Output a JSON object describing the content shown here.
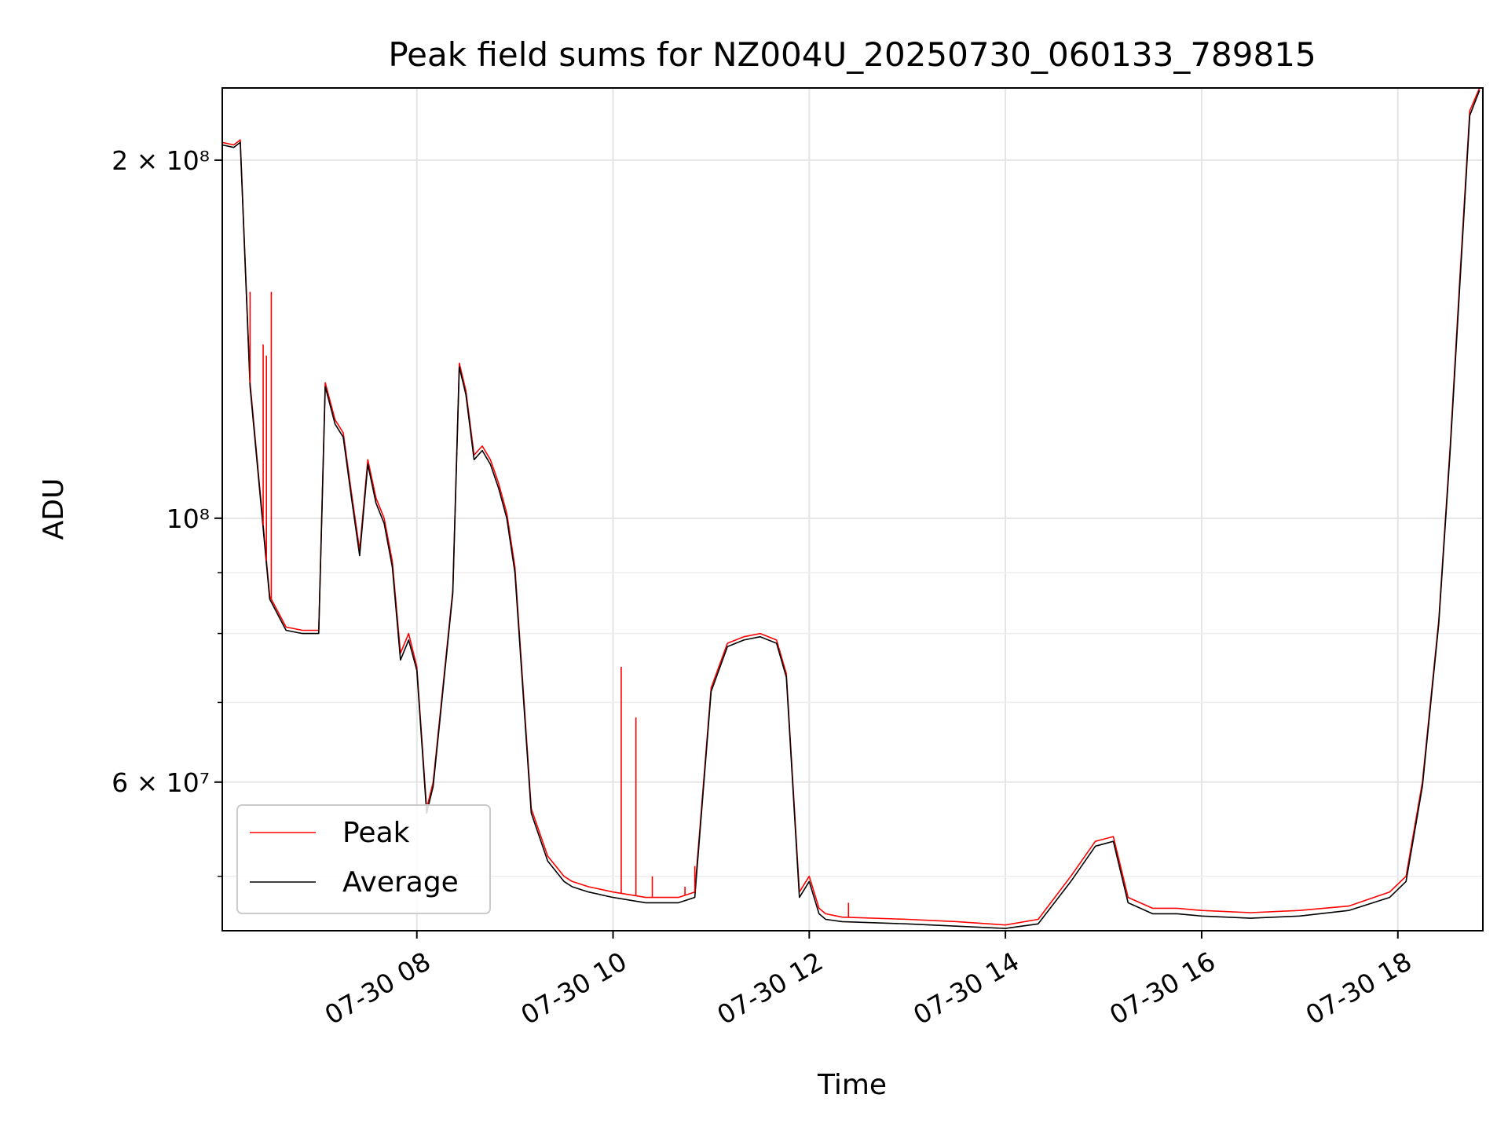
{
  "chart_data": {
    "type": "line",
    "title": "Peak field sums for NZ004U_20250730_060133_789815",
    "xlabel": "Time",
    "ylabel": "ADU",
    "y_scale": "log",
    "ylim": [
      45000000,
      230000000
    ],
    "xlim": [
      "2025-07-30 06:01",
      "2025-07-30 18:52"
    ],
    "x_ticks": [
      {
        "time": "2025-07-30 08:00",
        "label": "07-30 08"
      },
      {
        "time": "2025-07-30 10:00",
        "label": "07-30 10"
      },
      {
        "time": "2025-07-30 12:00",
        "label": "07-30 12"
      },
      {
        "time": "2025-07-30 14:00",
        "label": "07-30 14"
      },
      {
        "time": "2025-07-30 16:00",
        "label": "07-30 16"
      },
      {
        "time": "2025-07-30 18:00",
        "label": "07-30 18"
      }
    ],
    "y_ticks": [
      {
        "value": 200000000,
        "label": "2 × 10⁸"
      },
      {
        "value": 100000000,
        "label": "10⁸"
      },
      {
        "value": 60000000,
        "label": "6 × 10⁷"
      }
    ],
    "y_minor_ticks": [
      50000000,
      70000000,
      80000000,
      90000000
    ],
    "grid": true,
    "legend_position": "lower-left",
    "colors": {
      "peak": "#ff0000",
      "average": "#000000"
    },
    "series": [
      {
        "name": "Peak",
        "color": "#ff0000",
        "x": [
          "2025-07-30 06:01",
          "2025-07-30 06:08",
          "2025-07-30 06:12",
          "2025-07-30 06:18",
          "2025-07-30 06:30",
          "2025-07-30 06:40",
          "2025-07-30 06:50",
          "2025-07-30 07:00",
          "2025-07-30 07:04",
          "2025-07-30 07:10",
          "2025-07-30 07:15",
          "2025-07-30 07:20",
          "2025-07-30 07:25",
          "2025-07-30 07:30",
          "2025-07-30 07:35",
          "2025-07-30 07:40",
          "2025-07-30 07:45",
          "2025-07-30 07:50",
          "2025-07-30 07:55",
          "2025-07-30 08:00",
          "2025-07-30 08:06",
          "2025-07-30 08:10",
          "2025-07-30 08:15",
          "2025-07-30 08:22",
          "2025-07-30 08:26",
          "2025-07-30 08:30",
          "2025-07-30 08:35",
          "2025-07-30 08:40",
          "2025-07-30 08:45",
          "2025-07-30 08:50",
          "2025-07-30 08:55",
          "2025-07-30 09:00",
          "2025-07-30 09:10",
          "2025-07-30 09:20",
          "2025-07-30 09:25",
          "2025-07-30 09:30",
          "2025-07-30 09:35",
          "2025-07-30 09:45",
          "2025-07-30 10:00",
          "2025-07-30 10:20",
          "2025-07-30 10:40",
          "2025-07-30 10:50",
          "2025-07-30 11:00",
          "2025-07-30 11:10",
          "2025-07-30 11:20",
          "2025-07-30 11:30",
          "2025-07-30 11:40",
          "2025-07-30 11:46",
          "2025-07-30 11:54",
          "2025-07-30 12:00",
          "2025-07-30 12:06",
          "2025-07-30 12:10",
          "2025-07-30 12:20",
          "2025-07-30 13:00",
          "2025-07-30 13:30",
          "2025-07-30 14:00",
          "2025-07-30 14:20",
          "2025-07-30 14:40",
          "2025-07-30 14:55",
          "2025-07-30 15:06",
          "2025-07-30 15:15",
          "2025-07-30 15:30",
          "2025-07-30 15:45",
          "2025-07-30 16:00",
          "2025-07-30 16:30",
          "2025-07-30 17:00",
          "2025-07-30 17:30",
          "2025-07-30 17:55",
          "2025-07-30 18:05",
          "2025-07-30 18:15",
          "2025-07-30 18:25",
          "2025-07-30 18:32",
          "2025-07-30 18:38",
          "2025-07-30 18:44",
          "2025-07-30 18:50"
        ],
        "values": [
          207000000,
          206000000,
          208000000,
          130000000,
          86000000,
          81000000,
          80500000,
          80500000,
          130000000,
          121000000,
          118000000,
          105000000,
          94000000,
          112000000,
          104000000,
          100000000,
          92000000,
          77000000,
          80000000,
          75000000,
          57000000,
          60000000,
          70000000,
          87000000,
          135000000,
          128000000,
          113000000,
          115000000,
          112000000,
          107000000,
          101000000,
          91000000,
          57000000,
          52000000,
          51000000,
          50000000,
          49500000,
          49000000,
          48500000,
          48000000,
          48000000,
          48500000,
          72000000,
          78500000,
          79500000,
          80000000,
          79000000,
          74000000,
          48500000,
          50000000,
          47000000,
          46500000,
          46200000,
          46000000,
          45800000,
          45500000,
          46000000,
          50000000,
          53500000,
          54000000,
          48000000,
          47000000,
          47000000,
          46800000,
          46600000,
          46800000,
          47200000,
          48500000,
          50000000,
          60000000,
          82000000,
          115000000,
          160000000,
          220000000,
          230000000
        ]
      },
      {
        "name": "Average",
        "color": "#000000",
        "x": [
          "2025-07-30 06:01",
          "2025-07-30 06:08",
          "2025-07-30 06:12",
          "2025-07-30 06:18",
          "2025-07-30 06:30",
          "2025-07-30 06:40",
          "2025-07-30 06:50",
          "2025-07-30 07:00",
          "2025-07-30 07:04",
          "2025-07-30 07:10",
          "2025-07-30 07:15",
          "2025-07-30 07:20",
          "2025-07-30 07:25",
          "2025-07-30 07:30",
          "2025-07-30 07:35",
          "2025-07-30 07:40",
          "2025-07-30 07:45",
          "2025-07-30 07:50",
          "2025-07-30 07:55",
          "2025-07-30 08:00",
          "2025-07-30 08:06",
          "2025-07-30 08:10",
          "2025-07-30 08:15",
          "2025-07-30 08:22",
          "2025-07-30 08:26",
          "2025-07-30 08:30",
          "2025-07-30 08:35",
          "2025-07-30 08:40",
          "2025-07-30 08:45",
          "2025-07-30 08:50",
          "2025-07-30 08:55",
          "2025-07-30 09:00",
          "2025-07-30 09:10",
          "2025-07-30 09:20",
          "2025-07-30 09:25",
          "2025-07-30 09:30",
          "2025-07-30 09:35",
          "2025-07-30 09:45",
          "2025-07-30 10:00",
          "2025-07-30 10:20",
          "2025-07-30 10:40",
          "2025-07-30 10:50",
          "2025-07-30 11:00",
          "2025-07-30 11:10",
          "2025-07-30 11:20",
          "2025-07-30 11:30",
          "2025-07-30 11:40",
          "2025-07-30 11:46",
          "2025-07-30 11:54",
          "2025-07-30 12:00",
          "2025-07-30 12:06",
          "2025-07-30 12:10",
          "2025-07-30 12:20",
          "2025-07-30 13:00",
          "2025-07-30 13:30",
          "2025-07-30 14:00",
          "2025-07-30 14:20",
          "2025-07-30 14:40",
          "2025-07-30 14:55",
          "2025-07-30 15:06",
          "2025-07-30 15:15",
          "2025-07-30 15:30",
          "2025-07-30 15:45",
          "2025-07-30 16:00",
          "2025-07-30 16:30",
          "2025-07-30 17:00",
          "2025-07-30 17:30",
          "2025-07-30 17:55",
          "2025-07-30 18:05",
          "2025-07-30 18:15",
          "2025-07-30 18:25",
          "2025-07-30 18:32",
          "2025-07-30 18:38",
          "2025-07-30 18:44",
          "2025-07-30 18:50"
        ],
        "values": [
          206000000,
          205000000,
          207000000,
          129000000,
          85500000,
          80500000,
          80000000,
          80000000,
          129000000,
          120000000,
          117000000,
          104000000,
          93000000,
          111000000,
          103000000,
          99000000,
          91000000,
          76000000,
          79000000,
          74500000,
          56500000,
          59500000,
          69500000,
          86500000,
          134000000,
          127000000,
          112000000,
          114000000,
          111000000,
          106000000,
          100000000,
          90000000,
          56500000,
          51500000,
          50500000,
          49500000,
          49000000,
          48500000,
          48000000,
          47500000,
          47500000,
          48000000,
          71500000,
          78000000,
          79000000,
          79500000,
          78500000,
          73500000,
          48000000,
          49500000,
          46500000,
          46000000,
          45800000,
          45600000,
          45400000,
          45200000,
          45600000,
          49500000,
          53000000,
          53500000,
          47500000,
          46500000,
          46500000,
          46300000,
          46100000,
          46300000,
          46800000,
          48000000,
          49500000,
          59500000,
          81500000,
          114000000,
          158000000,
          218000000,
          229000000
        ]
      }
    ],
    "peak_spikes": [
      {
        "x": "2025-07-30 06:18",
        "value": 155000000
      },
      {
        "x": "2025-07-30 06:26",
        "value": 140000000
      },
      {
        "x": "2025-07-30 06:28",
        "value": 137000000
      },
      {
        "x": "2025-07-30 06:31",
        "value": 155000000
      },
      {
        "x": "2025-07-30 10:05",
        "value": 75000000
      },
      {
        "x": "2025-07-30 10:14",
        "value": 68000000
      },
      {
        "x": "2025-07-30 10:24",
        "value": 50000000
      },
      {
        "x": "2025-07-30 10:44",
        "value": 49000000
      },
      {
        "x": "2025-07-30 10:50",
        "value": 51000000
      },
      {
        "x": "2025-07-30 12:24",
        "value": 47500000
      }
    ]
  }
}
